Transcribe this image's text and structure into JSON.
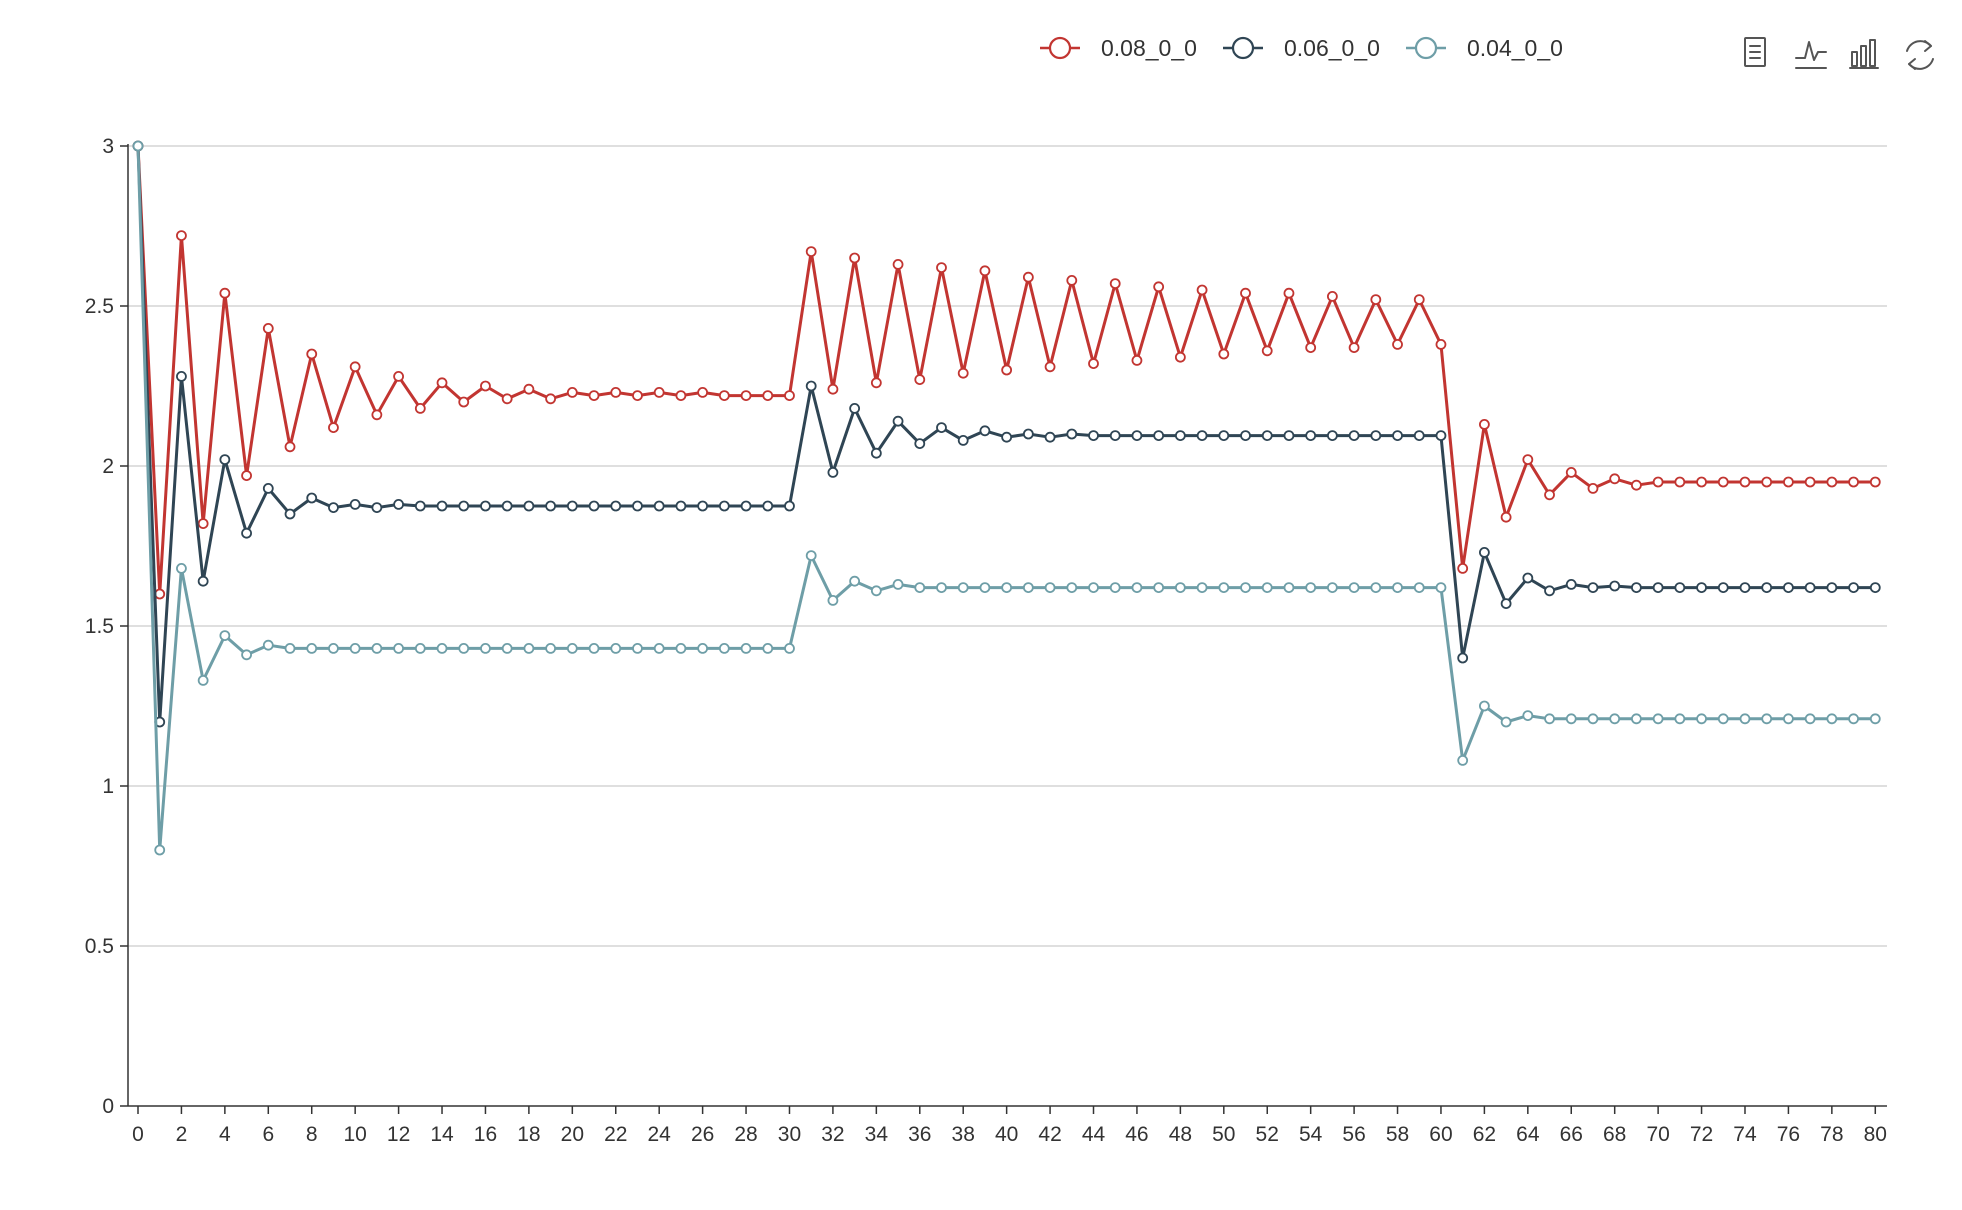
{
  "chart_data": {
    "type": "line",
    "title": "",
    "xlabel": "",
    "ylabel": "",
    "x": [
      0,
      1,
      2,
      3,
      4,
      5,
      6,
      7,
      8,
      9,
      10,
      11,
      12,
      13,
      14,
      15,
      16,
      17,
      18,
      19,
      20,
      21,
      22,
      23,
      24,
      25,
      26,
      27,
      28,
      29,
      30,
      31,
      32,
      33,
      34,
      35,
      36,
      37,
      38,
      39,
      40,
      41,
      42,
      43,
      44,
      45,
      46,
      47,
      48,
      49,
      50,
      51,
      52,
      53,
      54,
      55,
      56,
      57,
      58,
      59,
      60,
      61,
      62,
      63,
      64,
      65,
      66,
      67,
      68,
      69,
      70,
      71,
      72,
      73,
      74,
      75,
      76,
      77,
      78,
      79,
      80
    ],
    "xlim": [
      0,
      81
    ],
    "ylim": [
      0,
      3
    ],
    "x_tick_labels": [
      "0",
      "2",
      "4",
      "6",
      "8",
      "10",
      "12",
      "14",
      "16",
      "18",
      "20",
      "22",
      "24",
      "26",
      "28",
      "30",
      "32",
      "34",
      "36",
      "38",
      "40",
      "42",
      "44",
      "46",
      "48",
      "50",
      "52",
      "54",
      "56",
      "58",
      "60",
      "62",
      "64",
      "66",
      "68",
      "70",
      "72",
      "74",
      "76",
      "78",
      "80"
    ],
    "y_tick_labels": [
      "0",
      "0.5",
      "1",
      "1.5",
      "2",
      "2.5",
      "3"
    ],
    "grid": true,
    "legend_position": "top-center",
    "series": [
      {
        "name": "0.08_0_0",
        "color": "#c23531",
        "values": [
          3.0,
          1.6,
          2.72,
          1.82,
          2.54,
          1.97,
          2.43,
          2.06,
          2.35,
          2.12,
          2.31,
          2.16,
          2.28,
          2.18,
          2.26,
          2.2,
          2.25,
          2.21,
          2.24,
          2.21,
          2.23,
          2.22,
          2.23,
          2.22,
          2.23,
          2.22,
          2.23,
          2.22,
          2.22,
          2.22,
          2.22,
          2.67,
          2.24,
          2.65,
          2.26,
          2.63,
          2.27,
          2.62,
          2.29,
          2.61,
          2.3,
          2.59,
          2.31,
          2.58,
          2.32,
          2.57,
          2.33,
          2.56,
          2.34,
          2.55,
          2.35,
          2.54,
          2.36,
          2.54,
          2.37,
          2.53,
          2.37,
          2.52,
          2.38,
          2.52,
          2.38,
          1.68,
          2.13,
          1.84,
          2.02,
          1.91,
          1.98,
          1.93,
          1.96,
          1.94,
          1.95,
          1.95,
          1.95,
          1.95,
          1.95,
          1.95,
          1.95,
          1.95,
          1.95,
          1.95,
          1.95
        ]
      },
      {
        "name": "0.06_0_0",
        "color": "#2f4554",
        "values": [
          3.0,
          1.2,
          2.28,
          1.64,
          2.02,
          1.79,
          1.93,
          1.85,
          1.9,
          1.87,
          1.88,
          1.87,
          1.88,
          1.875,
          1.875,
          1.875,
          1.875,
          1.875,
          1.875,
          1.875,
          1.875,
          1.875,
          1.875,
          1.875,
          1.875,
          1.875,
          1.875,
          1.875,
          1.875,
          1.875,
          1.875,
          2.25,
          1.98,
          2.18,
          2.04,
          2.14,
          2.07,
          2.12,
          2.08,
          2.11,
          2.09,
          2.1,
          2.09,
          2.1,
          2.095,
          2.095,
          2.095,
          2.095,
          2.095,
          2.095,
          2.095,
          2.095,
          2.095,
          2.095,
          2.095,
          2.095,
          2.095,
          2.095,
          2.095,
          2.095,
          2.095,
          1.4,
          1.73,
          1.57,
          1.65,
          1.61,
          1.63,
          1.62,
          1.625,
          1.62,
          1.62,
          1.62,
          1.62,
          1.62,
          1.62,
          1.62,
          1.62,
          1.62,
          1.62,
          1.62,
          1.62
        ]
      },
      {
        "name": "0.04_0_0",
        "color": "#6e9ea7",
        "values": [
          3.0,
          0.8,
          1.68,
          1.33,
          1.47,
          1.41,
          1.44,
          1.43,
          1.43,
          1.43,
          1.43,
          1.43,
          1.43,
          1.43,
          1.43,
          1.43,
          1.43,
          1.43,
          1.43,
          1.43,
          1.43,
          1.43,
          1.43,
          1.43,
          1.43,
          1.43,
          1.43,
          1.43,
          1.43,
          1.43,
          1.43,
          1.72,
          1.58,
          1.64,
          1.61,
          1.63,
          1.62,
          1.62,
          1.62,
          1.62,
          1.62,
          1.62,
          1.62,
          1.62,
          1.62,
          1.62,
          1.62,
          1.62,
          1.62,
          1.62,
          1.62,
          1.62,
          1.62,
          1.62,
          1.62,
          1.62,
          1.62,
          1.62,
          1.62,
          1.62,
          1.62,
          1.08,
          1.25,
          1.2,
          1.22,
          1.21,
          1.21,
          1.21,
          1.21,
          1.21,
          1.21,
          1.21,
          1.21,
          1.21,
          1.21,
          1.21,
          1.21,
          1.21,
          1.21,
          1.21,
          1.21
        ]
      }
    ]
  },
  "toolbox": {
    "icons": [
      "data-view-icon",
      "line-chart-icon",
      "bar-chart-icon",
      "restore-icon"
    ]
  },
  "colors": {
    "grid": "#cccccc",
    "axis": "#333333",
    "text": "#333333"
  }
}
